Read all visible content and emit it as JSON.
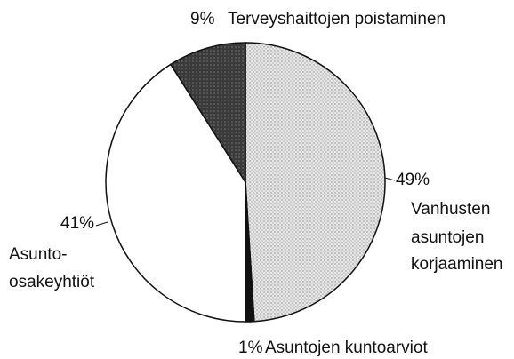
{
  "chart_data": {
    "type": "pie",
    "categories": [
      [
        "Vanhusten",
        "asuntojen",
        "korjaaminen"
      ],
      [
        "Asuntojen kuntoarviot"
      ],
      [
        "Asunto-",
        "osakeyhtiöt"
      ],
      [
        "Terveyshaittojen poistaminen"
      ]
    ],
    "values": [
      49,
      1,
      41,
      9
    ],
    "value_labels": [
      "49%",
      "1%",
      "41%",
      "9%"
    ],
    "colors": [
      "#d8d8d8",
      "#111111",
      "#ffffff",
      "#4a4a4a"
    ],
    "start_angle": 0,
    "direction": "clockwise"
  }
}
